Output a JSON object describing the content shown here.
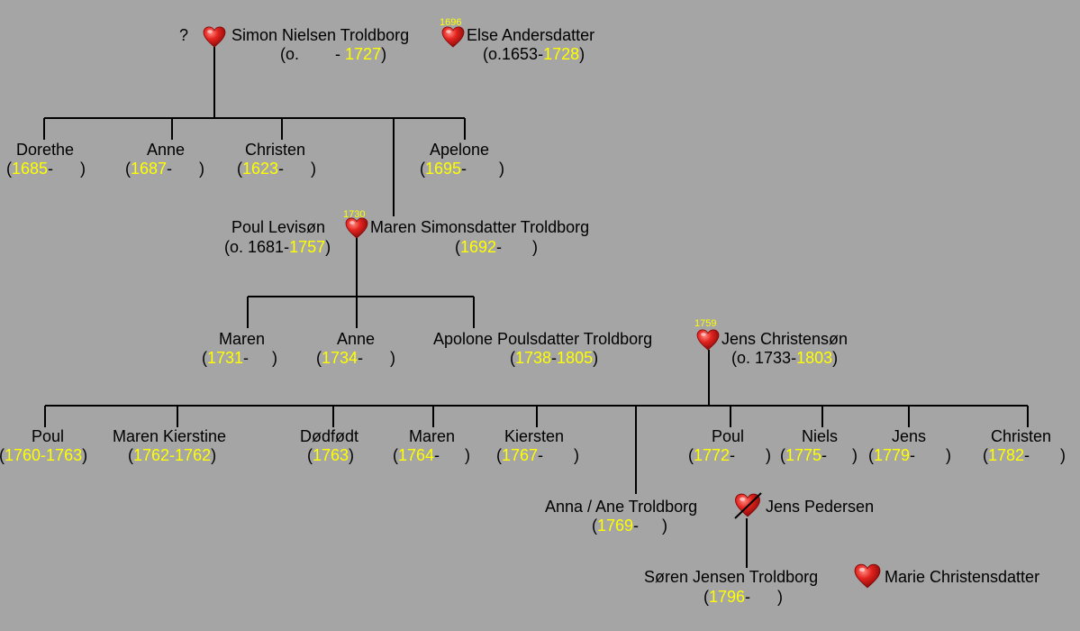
{
  "unknown_mark": "?",
  "gen1": {
    "simon": {
      "name": "Simon Nielsen Troldborg",
      "circa": "o.",
      "sep": "-",
      "death": "1727"
    },
    "else_": {
      "name": "Else Andersdatter",
      "birth": "o.1653",
      "sep": "-",
      "death": "1728"
    },
    "marriage_year": "1696"
  },
  "gen2": {
    "dorethe": {
      "name": "Dorethe",
      "birth": "1685",
      "sep": "-"
    },
    "anne": {
      "name": "Anne",
      "birth": "1687",
      "sep": "-"
    },
    "christen": {
      "name": "Christen",
      "birth": "1623",
      "sep": "-"
    },
    "apelone": {
      "name": "Apelone",
      "birth": "1695",
      "sep": "-"
    },
    "poul": {
      "name": "Poul Levisøn",
      "birth": "o. 1681",
      "sep": "-",
      "death": "1757"
    },
    "maren": {
      "name": "Maren Simonsdatter Troldborg",
      "birth": "1692",
      "sep": "-"
    },
    "marriage_year": "1730"
  },
  "gen3": {
    "maren": {
      "name": "Maren",
      "birth": "1731",
      "sep": "-"
    },
    "anne": {
      "name": "Anne",
      "birth": "1734",
      "sep": "-"
    },
    "apolone": {
      "name": "Apolone Poulsdatter Troldborg",
      "birth": "1738",
      "sep": "-",
      "death": "1805"
    },
    "jens": {
      "name": "Jens Christensøn",
      "birth": "o. 1733",
      "sep": "-",
      "death": "1803"
    },
    "marriage_year": "1759"
  },
  "gen4": {
    "poul1": {
      "name": "Poul",
      "birth": "1760",
      "sep": "-",
      "death": "1763"
    },
    "maren_k": {
      "name": "Maren Kierstine",
      "birth": "1762",
      "sep": "-",
      "death": "1762"
    },
    "dodfodt": {
      "name": "Dødfødt",
      "birth": "1763"
    },
    "maren": {
      "name": "Maren",
      "birth": "1764",
      "sep": "-"
    },
    "kiersten": {
      "name": "Kiersten",
      "birth": "1767",
      "sep": "-"
    },
    "poul2": {
      "name": "Poul",
      "birth": "1772",
      "sep": "-"
    },
    "niels": {
      "name": "Niels",
      "birth": "1775",
      "sep": "-"
    },
    "jens": {
      "name": "Jens",
      "birth": "1779",
      "sep": "-"
    },
    "christen": {
      "name": "Christen",
      "birth": "1782",
      "sep": "-"
    },
    "anna": {
      "name": "Anna / Ane Troldborg",
      "birth": "1769",
      "sep": "-"
    },
    "jens_p": {
      "name": "Jens Pedersen"
    }
  },
  "gen5": {
    "soren": {
      "name": "Søren Jensen Troldborg",
      "birth": "1796",
      "sep": "-"
    },
    "marie": {
      "name": "Marie Christensdatter"
    }
  },
  "colors": {
    "background": "#a5a5a5",
    "year": "#ffff00",
    "heart": "#e0201d",
    "line": "#000000"
  }
}
